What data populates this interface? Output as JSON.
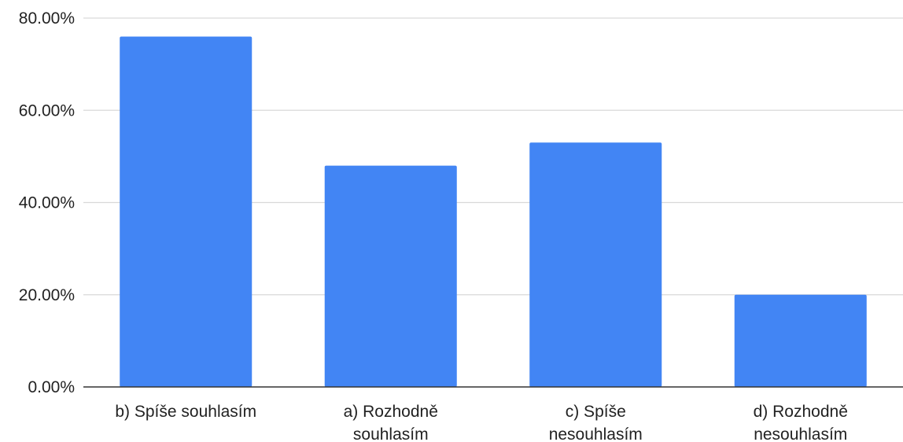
{
  "chart_data": {
    "type": "bar",
    "title": "",
    "xlabel": "",
    "ylabel": "",
    "categories": [
      [
        "b) Spíše souhlasím"
      ],
      [
        "a) Rozhodně",
        "souhlasím"
      ],
      [
        "c) Spíše",
        "nesouhlasím"
      ],
      [
        "d) Rozhodně",
        "nesouhlasím"
      ]
    ],
    "values": [
      76,
      48,
      53,
      20
    ],
    "value_unit": "%",
    "ylim": [
      0,
      80
    ],
    "yticks": [
      0,
      20,
      40,
      60,
      80
    ],
    "ytick_labels": [
      "0.00%",
      "20.00%",
      "40.00%",
      "60.00%",
      "80.00%"
    ],
    "grid": true,
    "legend": "none",
    "colors": {
      "bar": "#4285f4",
      "grid": "#d9d9d9",
      "axis": "#333333",
      "text": "#222222"
    }
  }
}
